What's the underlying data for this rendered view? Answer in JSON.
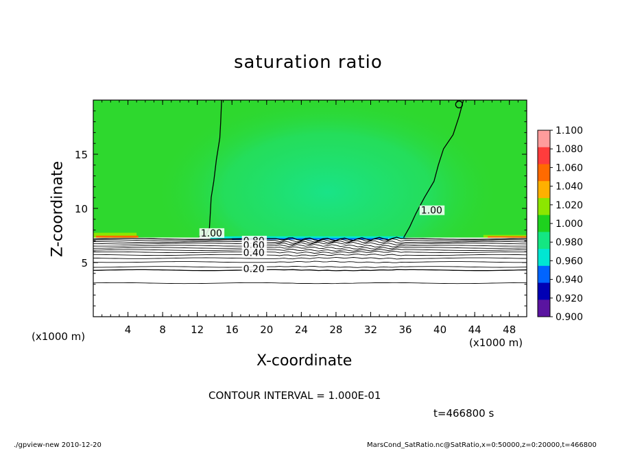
{
  "chart_data": {
    "type": "heatmap",
    "title": "saturation ratio",
    "xlabel": "X-coordinate",
    "ylabel": "Z-coordinate",
    "x_unit_left": "(x1000 m)",
    "x_unit_right": "(x1000 m)",
    "xlim": [
      0,
      50
    ],
    "ylim": [
      0,
      20
    ],
    "xticks": [
      4,
      8,
      12,
      16,
      20,
      24,
      28,
      32,
      36,
      40,
      44,
      48
    ],
    "yticks": [
      5,
      10,
      15
    ],
    "colorbar": {
      "levels": [
        "1.100",
        "1.080",
        "1.060",
        "1.040",
        "1.020",
        "1.000",
        "0.980",
        "0.960",
        "0.940",
        "0.920",
        "0.900"
      ],
      "colors": [
        "#ff9c9c",
        "#ff3c3c",
        "#ff6a00",
        "#ffb000",
        "#8ce600",
        "#1ed21e",
        "#14e682",
        "#00e6d2",
        "#0064ff",
        "#0000b4",
        "#5a14a0"
      ]
    },
    "field_colors": {
      "background": "#2ed82e",
      "center": "#1ee178",
      "low": "#ffffff"
    },
    "contour_labels": [
      {
        "text": "1.00",
        "x": 12.4,
        "z": 7.6
      },
      {
        "text": "1.00",
        "x": 37.8,
        "z": 9.7
      },
      {
        "text": "0.80",
        "x": 17.3,
        "z": 6.9
      },
      {
        "text": "0.60",
        "x": 17.3,
        "z": 6.5
      },
      {
        "text": "0.40",
        "x": 17.3,
        "z": 5.8
      },
      {
        "text": "0.20",
        "x": 17.3,
        "z": 4.3
      }
    ],
    "contour_interval_text": "CONTOUR INTERVAL = 1.000E-01",
    "time_text": "t=466800 s"
  },
  "footer": {
    "left": "./gpview-new   2010-12-20",
    "right": "MarsCond_SatRatio.nc@SatRatio,x=0:50000,z=0:20000,t=466800"
  }
}
